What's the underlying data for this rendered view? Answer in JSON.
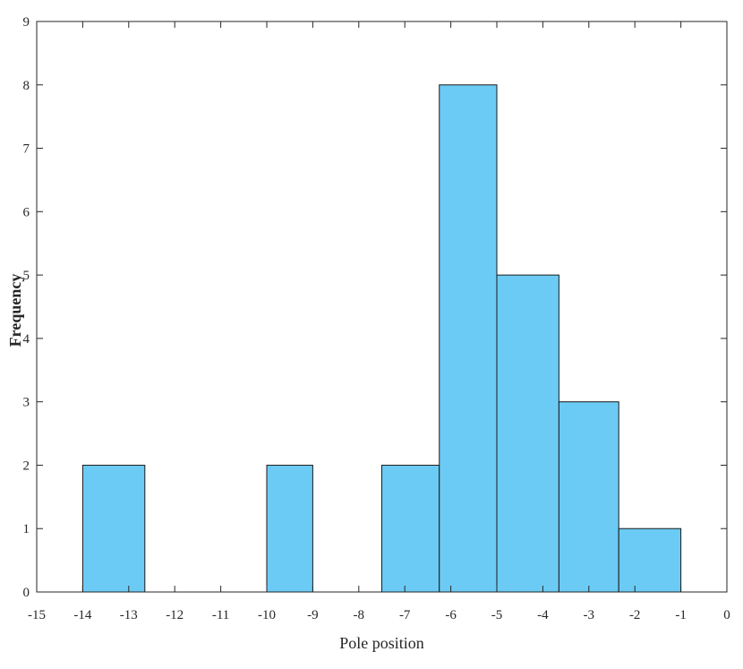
{
  "chart_data": {
    "type": "bar",
    "subtype": "histogram",
    "title": "",
    "xlabel": "Pole position",
    "ylabel": "Frequency",
    "xlim": [
      -15,
      0
    ],
    "ylim": [
      0,
      9
    ],
    "xticks": [
      -15,
      -14,
      -13,
      -12,
      -11,
      -10,
      -9,
      -8,
      -7,
      -6,
      -5,
      -4,
      -3,
      -2,
      -1,
      0
    ],
    "xtick_labels": [
      "-15",
      "-14",
      "-13",
      "-12",
      "-11",
      "-10",
      "-9",
      "-8",
      "-7",
      "-6",
      "-5",
      "-4",
      "-3",
      "-2",
      "-1",
      "0"
    ],
    "yticks": [
      0,
      1,
      2,
      3,
      4,
      5,
      6,
      7,
      8,
      9
    ],
    "ytick_labels": [
      "0",
      "1",
      "2",
      "3",
      "4",
      "5",
      "6",
      "7",
      "8",
      "9"
    ],
    "bins": [
      {
        "x0": -14.0,
        "x1": -12.65,
        "count": 2
      },
      {
        "x0": -12.65,
        "x1": -11.65,
        "count": 0
      },
      {
        "x0": -11.65,
        "x1": -10.65,
        "count": 0
      },
      {
        "x0": -10.65,
        "x1": -10.0,
        "count": 0
      },
      {
        "x0": -10.0,
        "x1": -9.0,
        "count": 2
      },
      {
        "x0": -9.0,
        "x1": -7.5,
        "count": 0
      },
      {
        "x0": -7.5,
        "x1": -6.25,
        "count": 2
      },
      {
        "x0": -6.25,
        "x1": -5.0,
        "count": 8
      },
      {
        "x0": -5.0,
        "x1": -3.65,
        "count": 5
      },
      {
        "x0": -3.65,
        "x1": -2.35,
        "count": 3
      },
      {
        "x0": -2.35,
        "x1": -1.0,
        "count": 1
      }
    ],
    "bar_color": "#6ccbf4",
    "edge_color": "#1a1a1a",
    "grid": false,
    "legend": "none"
  }
}
